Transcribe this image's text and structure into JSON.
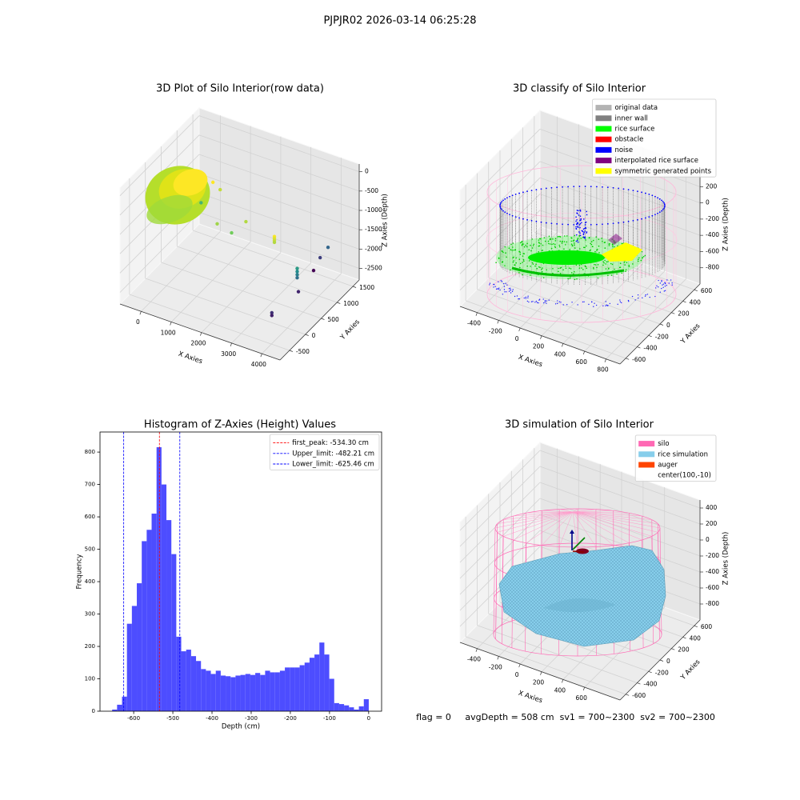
{
  "title": "PJPJR02 2026-03-14 06:25:28",
  "footer": "flag = 0     avgDepth = 508 cm  sv1 = 700~2300  sv2 = 700~2300",
  "chart_data": [
    {
      "type": "scatter3d",
      "title": "3D Plot of Silo Interior(row data)",
      "xlabel": "X Axies",
      "ylabel": "Y Axies",
      "zlabel": "Z Axies (Depth)",
      "xlim": [
        -700,
        4600
      ],
      "ylim": [
        -800,
        1700
      ],
      "zlim": [
        -2800,
        200
      ],
      "xticks": [
        0,
        1000,
        2000,
        3000,
        4000
      ],
      "yticks": [
        -500,
        0,
        500,
        1000,
        1500
      ],
      "zticks": [
        0,
        -500,
        -1000,
        -1500,
        -2000,
        -2500
      ],
      "colormap": "viridis",
      "x": [
        1208,
        1685,
        1897,
        3103,
        3103,
        3103,
        3103,
        3858,
        3858,
        3858,
        3858,
        3805,
        3805,
        3830,
        3700,
        3614,
        3898,
        280,
        519,
        44
      ],
      "y": [
        450,
        450,
        700,
        450,
        450,
        450,
        450,
        450,
        450,
        450,
        450,
        -300,
        -300,
        1450,
        1325,
        1200,
        450,
        1200,
        1200,
        1050
      ],
      "z": [
        -1240,
        -1342,
        -1201,
        -1050,
        -1100,
        -1150,
        -1200,
        -1670,
        -1750,
        -1830,
        -1910,
        -2210,
        -2280,
        -1960,
        -2157,
        -2410,
        -2260,
        -1040,
        -1165,
        -1510
      ]
    },
    {
      "type": "classify3d",
      "title": "3D classify of Silo Interior",
      "xlabel": "X Axies",
      "ylabel": "Y Axies",
      "zlabel": "Z Axies (Depth)",
      "xlim": [
        -560,
        930
      ],
      "ylim": [
        -700,
        700
      ],
      "zlim": [
        -1000,
        430
      ],
      "xticks": [
        -400,
        -200,
        0,
        200,
        400,
        600,
        800
      ],
      "yticks": [
        -600,
        -400,
        -200,
        0,
        200,
        400,
        600
      ],
      "zticks": [
        200,
        0,
        -200,
        -400,
        -600,
        -800
      ],
      "legend": "upper right",
      "legend_items": [
        {
          "label": "original data",
          "color": "#b3b3b3"
        },
        {
          "label": "inner wall",
          "color": "#808080"
        },
        {
          "label": "rice surface",
          "color": "#00ff00"
        },
        {
          "label": "obstacle",
          "color": "#ff0000"
        },
        {
          "label": "noise",
          "color": "#0000ff"
        },
        {
          "label": "interpolated rice surface",
          "color": "#800080"
        },
        {
          "label": "symmetric generated points",
          "color": "#ffff00"
        }
      ]
    },
    {
      "type": "histogram",
      "title": "Histogram of Z-Axies (Height) Values",
      "xlabel": "Depth (cm)",
      "ylabel": "Frequency",
      "color": "#4d4dff",
      "xlim": [
        -686,
        33
      ],
      "ylim": [
        0,
        862
      ],
      "xticks": [
        -600,
        -500,
        -400,
        -300,
        -200,
        -100,
        0
      ],
      "yticks": [
        0,
        100,
        200,
        300,
        400,
        500,
        600,
        700,
        800
      ],
      "bins": [
        -655,
        -642.4,
        -629.8,
        -617.2,
        -604.6,
        -592,
        -579.4,
        -566.8,
        -554.2,
        -541.6,
        -529,
        -516.4,
        -503.8,
        -491.2,
        -478.6,
        -466,
        -453.4,
        -440.8,
        -428.2,
        -415.6,
        -403,
        -390.4,
        -377.8,
        -365.2,
        -352.6,
        -340,
        -327.4,
        -314.8,
        -302.2,
        -289.6,
        -277,
        -264.4,
        -251.8,
        -239.2,
        -226.6,
        -214,
        -201.4,
        -188.8,
        -176.2,
        -163.6,
        -151,
        -138.4,
        -125.8,
        -113.2,
        -100.6,
        -88,
        -75.4,
        -62.8,
        -50.2,
        -37.6,
        -25,
        -12.4,
        0.2
      ],
      "values": [
        5,
        20,
        45,
        270,
        325,
        395,
        525,
        560,
        610,
        815,
        700,
        590,
        485,
        230,
        185,
        190,
        170,
        155,
        130,
        125,
        115,
        125,
        110,
        108,
        105,
        110,
        112,
        115,
        112,
        118,
        112,
        125,
        120,
        120,
        125,
        135,
        135,
        135,
        142,
        150,
        165,
        175,
        212,
        175,
        100,
        25,
        22,
        18,
        12,
        5,
        15,
        37
      ],
      "legend": "upper right",
      "lines": [
        {
          "name": "first_peak: -534.30 cm",
          "value": -534.3,
          "color": "#ff0000"
        },
        {
          "name": "Upper_limit: -482.21 cm",
          "value": -482.21,
          "color": "#0000ff"
        },
        {
          "name": "Lower_limit: -625.46 cm",
          "value": -625.46,
          "color": "#0000ff"
        }
      ]
    },
    {
      "type": "simulation3d",
      "title": "3D simulation of Silo Interior",
      "xlabel": "X Axies",
      "ylabel": "Y Axies",
      "zlabel": "Z Axies (Depth)",
      "xlim": [
        -560,
        930
      ],
      "ylim": [
        -700,
        700
      ],
      "zlim": [
        -1000,
        500
      ],
      "xticks": [
        -400,
        -200,
        0,
        200,
        400,
        600
      ],
      "yticks": [
        -600,
        -400,
        -200,
        0,
        200,
        400,
        600
      ],
      "zticks": [
        400,
        200,
        0,
        -200,
        -400,
        -600,
        -800
      ],
      "legend": "upper right",
      "legend_items": [
        {
          "label": "silo",
          "color": "#ff69b4"
        },
        {
          "label": "rice simulation",
          "color": "#87ceeb"
        },
        {
          "label": "auger",
          "color": "#ff4500"
        },
        {
          "label": "center(100,-10)"
        }
      ]
    }
  ]
}
